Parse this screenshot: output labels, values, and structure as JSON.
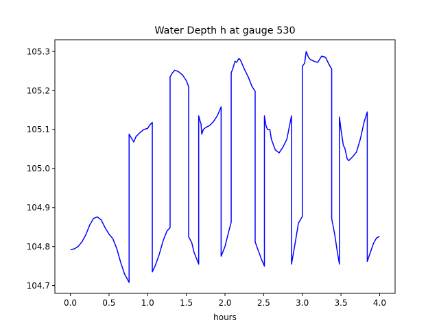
{
  "chart_data": {
    "type": "line",
    "title": "Water Depth h at gauge 530",
    "xlabel": "hours",
    "ylabel": "",
    "xlim": [
      -0.2,
      4.2
    ],
    "ylim": [
      104.68,
      105.33
    ],
    "xticks": [
      0.0,
      0.5,
      1.0,
      1.5,
      2.0,
      2.5,
      3.0,
      3.5,
      4.0
    ],
    "xtick_labels": [
      "0.0",
      "0.5",
      "1.0",
      "1.5",
      "2.0",
      "2.5",
      "3.0",
      "3.5",
      "4.0"
    ],
    "yticks": [
      104.7,
      104.8,
      104.9,
      105.0,
      105.1,
      105.2,
      105.3
    ],
    "ytick_labels": [
      "104.7",
      "104.8",
      "104.9",
      "105.0",
      "105.1",
      "105.2",
      "105.3"
    ],
    "grid": false,
    "series": [
      {
        "color": "#0000ff",
        "x": [
          0.0,
          0.05,
          0.1,
          0.15,
          0.2,
          0.25,
          0.3,
          0.35,
          0.4,
          0.45,
          0.5,
          0.55,
          0.6,
          0.65,
          0.7,
          0.76,
          0.76,
          0.79,
          0.82,
          0.85,
          0.9,
          0.95,
          1.0,
          1.03,
          1.06,
          1.06,
          1.1,
          1.15,
          1.2,
          1.25,
          1.29,
          1.29,
          1.32,
          1.35,
          1.38,
          1.4,
          1.45,
          1.5,
          1.53,
          1.53,
          1.57,
          1.6,
          1.63,
          1.66,
          1.66,
          1.68,
          1.69,
          1.7,
          1.72,
          1.75,
          1.8,
          1.85,
          1.9,
          1.95,
          1.95,
          2.0,
          2.05,
          2.08,
          2.08,
          2.1,
          2.13,
          2.15,
          2.18,
          2.2,
          2.25,
          2.3,
          2.35,
          2.39,
          2.39,
          2.43,
          2.47,
          2.51,
          2.51,
          2.53,
          2.55,
          2.58,
          2.6,
          2.65,
          2.7,
          2.75,
          2.8,
          2.83,
          2.86,
          2.86,
          2.9,
          2.95,
          3.0,
          3.0,
          3.03,
          3.05,
          3.08,
          3.1,
          3.15,
          3.2,
          3.25,
          3.3,
          3.35,
          3.38,
          3.38,
          3.42,
          3.45,
          3.48,
          3.48,
          3.5,
          3.53,
          3.55,
          3.58,
          3.6,
          3.65,
          3.7,
          3.75,
          3.8,
          3.84,
          3.84,
          3.88,
          3.92,
          3.96,
          4.0
        ],
        "y": [
          104.792,
          104.794,
          104.8,
          104.812,
          104.83,
          104.855,
          104.872,
          104.876,
          104.868,
          104.848,
          104.832,
          104.82,
          104.795,
          104.76,
          104.73,
          104.708,
          105.088,
          105.078,
          105.068,
          105.082,
          105.092,
          105.1,
          105.103,
          105.112,
          105.118,
          104.735,
          104.752,
          104.78,
          104.815,
          104.84,
          104.848,
          105.235,
          105.245,
          105.252,
          105.25,
          105.248,
          105.24,
          105.225,
          105.21,
          104.825,
          104.81,
          104.785,
          104.77,
          104.755,
          105.135,
          105.12,
          105.115,
          105.088,
          105.1,
          105.105,
          105.11,
          105.12,
          105.135,
          105.158,
          104.775,
          104.8,
          104.84,
          104.862,
          105.245,
          105.255,
          105.275,
          105.272,
          105.282,
          105.278,
          105.255,
          105.235,
          105.21,
          105.198,
          104.812,
          104.79,
          104.768,
          104.75,
          105.135,
          105.11,
          105.1,
          105.1,
          105.075,
          105.048,
          105.04,
          105.055,
          105.075,
          105.105,
          105.135,
          104.755,
          104.8,
          104.86,
          104.877,
          105.262,
          105.27,
          105.3,
          105.285,
          105.28,
          105.275,
          105.272,
          105.288,
          105.285,
          105.265,
          105.255,
          104.872,
          104.83,
          104.79,
          104.755,
          105.132,
          105.1,
          105.06,
          105.052,
          105.025,
          105.02,
          105.03,
          105.042,
          105.075,
          105.12,
          105.145,
          104.762,
          104.785,
          104.808,
          104.822,
          104.826
        ]
      }
    ]
  }
}
